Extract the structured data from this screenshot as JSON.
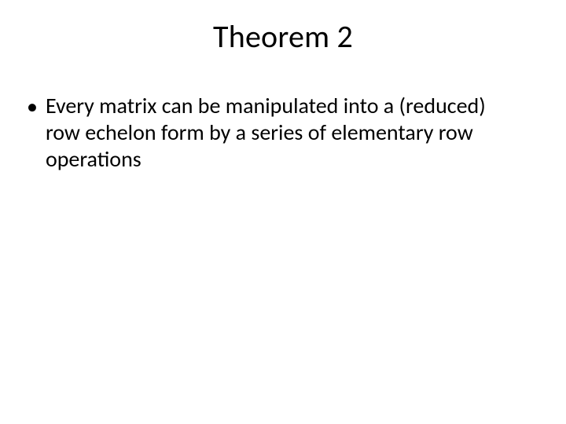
{
  "slide": {
    "title": "Theorem 2",
    "bullets": [
      {
        "text": "Every matrix can be manipulated into a (reduced) row echelon form by a series of elementary row operations"
      }
    ]
  },
  "style": {
    "background_color": "#ffffff",
    "text_color": "#000000",
    "title_fontsize": 40,
    "body_fontsize": 28,
    "font_family": "Calibri"
  }
}
